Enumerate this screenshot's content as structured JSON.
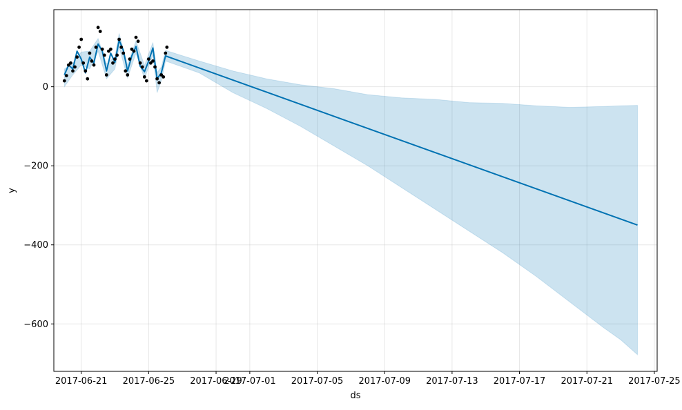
{
  "chart_data": {
    "type": "line",
    "title": "",
    "xlabel": "ds",
    "ylabel": "y",
    "xlim": [
      "2017-06-19T09:00",
      "2017-07-25T04:00"
    ],
    "ylim": [
      -720,
      195
    ],
    "x_ticks": [
      "2017-06-21",
      "2017-06-25",
      "2017-06-29",
      "2017-07-01",
      "2017-07-05",
      "2017-07-09",
      "2017-07-13",
      "2017-07-17",
      "2017-07-21",
      "2017-07-25"
    ],
    "y_ticks": [
      0,
      -200,
      -400,
      -600
    ],
    "grid": true,
    "colors": {
      "forecast": "#0072B2",
      "band": "#0072B2",
      "observed": "#000000"
    },
    "series": [
      {
        "kind": "forecast",
        "points": [
          [
            "2017-06-20T00:00",
            30
          ],
          [
            "2017-06-20T06:00",
            55
          ],
          [
            "2017-06-20T12:00",
            45
          ],
          [
            "2017-06-20T18:00",
            90
          ],
          [
            "2017-06-21T00:00",
            70
          ],
          [
            "2017-06-21T06:00",
            35
          ],
          [
            "2017-06-21T12:00",
            75
          ],
          [
            "2017-06-21T18:00",
            60
          ],
          [
            "2017-06-22T00:00",
            108
          ],
          [
            "2017-06-22T06:00",
            90
          ],
          [
            "2017-06-22T12:00",
            40
          ],
          [
            "2017-06-22T18:00",
            85
          ],
          [
            "2017-06-23T00:00",
            62
          ],
          [
            "2017-06-23T06:00",
            118
          ],
          [
            "2017-06-23T12:00",
            92
          ],
          [
            "2017-06-23T18:00",
            40
          ],
          [
            "2017-06-24T00:00",
            78
          ],
          [
            "2017-06-24T06:00",
            102
          ],
          [
            "2017-06-24T12:00",
            52
          ],
          [
            "2017-06-24T18:00",
            38
          ],
          [
            "2017-06-25T00:00",
            65
          ],
          [
            "2017-06-25T06:00",
            98
          ],
          [
            "2017-06-25T12:00",
            20
          ],
          [
            "2017-06-25T18:00",
            35
          ],
          [
            "2017-06-26T00:00",
            78
          ],
          [
            "2017-07-24T00:00",
            -350
          ]
        ]
      },
      {
        "kind": "uncertainty-upper",
        "points": [
          [
            "2017-06-20T00:00",
            45
          ],
          [
            "2017-06-20T12:00",
            60
          ],
          [
            "2017-06-21T00:00",
            88
          ],
          [
            "2017-06-21T12:00",
            90
          ],
          [
            "2017-06-22T00:00",
            122
          ],
          [
            "2017-06-22T12:00",
            58
          ],
          [
            "2017-06-23T00:00",
            76
          ],
          [
            "2017-06-23T06:00",
            135
          ],
          [
            "2017-06-23T18:00",
            56
          ],
          [
            "2017-06-24T06:00",
            116
          ],
          [
            "2017-06-24T18:00",
            54
          ],
          [
            "2017-06-25T06:00",
            112
          ],
          [
            "2017-06-25T12:00",
            36
          ],
          [
            "2017-06-25T18:00",
            50
          ],
          [
            "2017-06-26T00:00",
            92
          ],
          [
            "2017-06-28T00:00",
            65
          ],
          [
            "2017-06-30T00:00",
            40
          ],
          [
            "2017-07-02T00:00",
            20
          ],
          [
            "2017-07-04T00:00",
            5
          ],
          [
            "2017-07-06T00:00",
            -5
          ],
          [
            "2017-07-08T00:00",
            -20
          ],
          [
            "2017-07-10T00:00",
            -28
          ],
          [
            "2017-07-12T00:00",
            -32
          ],
          [
            "2017-07-14T00:00",
            -40
          ],
          [
            "2017-07-16T00:00",
            -42
          ],
          [
            "2017-07-18T00:00",
            -48
          ],
          [
            "2017-07-20T00:00",
            -52
          ],
          [
            "2017-07-22T00:00",
            -50
          ],
          [
            "2017-07-23T00:00",
            -48
          ],
          [
            "2017-07-24T00:00",
            -47
          ]
        ]
      },
      {
        "kind": "uncertainty-lower",
        "points": [
          [
            "2017-06-20T00:00",
            0
          ],
          [
            "2017-06-20T12:00",
            30
          ],
          [
            "2017-06-21T00:00",
            55
          ],
          [
            "2017-06-21T12:00",
            45
          ],
          [
            "2017-06-22T00:00",
            90
          ],
          [
            "2017-06-22T12:00",
            20
          ],
          [
            "2017-06-23T00:00",
            45
          ],
          [
            "2017-06-23T06:00",
            100
          ],
          [
            "2017-06-23T18:00",
            22
          ],
          [
            "2017-06-24T06:00",
            85
          ],
          [
            "2017-06-24T18:00",
            20
          ],
          [
            "2017-06-25T06:00",
            80
          ],
          [
            "2017-06-25T12:00",
            -15
          ],
          [
            "2017-06-25T18:00",
            15
          ],
          [
            "2017-06-26T00:00",
            65
          ],
          [
            "2017-06-28T00:00",
            35
          ],
          [
            "2017-06-30T00:00",
            -15
          ],
          [
            "2017-07-02T00:00",
            -55
          ],
          [
            "2017-07-04T00:00",
            -100
          ],
          [
            "2017-07-06T00:00",
            -150
          ],
          [
            "2017-07-08T00:00",
            -200
          ],
          [
            "2017-07-10T00:00",
            -255
          ],
          [
            "2017-07-12T00:00",
            -310
          ],
          [
            "2017-07-14T00:00",
            -365
          ],
          [
            "2017-07-16T00:00",
            -420
          ],
          [
            "2017-07-18T00:00",
            -480
          ],
          [
            "2017-07-20T00:00",
            -545
          ],
          [
            "2017-07-22T00:00",
            -610
          ],
          [
            "2017-07-23T00:00",
            -640
          ],
          [
            "2017-07-24T00:00",
            -678
          ]
        ]
      },
      {
        "kind": "observed",
        "points": [
          [
            "2017-06-20T00:00",
            15
          ],
          [
            "2017-06-20T03:00",
            28
          ],
          [
            "2017-06-20T06:00",
            55
          ],
          [
            "2017-06-20T09:00",
            60
          ],
          [
            "2017-06-20T12:00",
            40
          ],
          [
            "2017-06-20T15:00",
            50
          ],
          [
            "2017-06-20T18:00",
            75
          ],
          [
            "2017-06-20T21:00",
            100
          ],
          [
            "2017-06-21T00:00",
            120
          ],
          [
            "2017-06-21T03:00",
            60
          ],
          [
            "2017-06-21T06:00",
            40
          ],
          [
            "2017-06-21T09:00",
            20
          ],
          [
            "2017-06-21T12:00",
            85
          ],
          [
            "2017-06-21T15:00",
            65
          ],
          [
            "2017-06-21T18:00",
            55
          ],
          [
            "2017-06-21T21:00",
            100
          ],
          [
            "2017-06-22T00:00",
            150
          ],
          [
            "2017-06-22T03:00",
            140
          ],
          [
            "2017-06-22T06:00",
            95
          ],
          [
            "2017-06-22T09:00",
            80
          ],
          [
            "2017-06-22T12:00",
            30
          ],
          [
            "2017-06-22T15:00",
            90
          ],
          [
            "2017-06-22T18:00",
            95
          ],
          [
            "2017-06-22T21:00",
            60
          ],
          [
            "2017-06-23T00:00",
            70
          ],
          [
            "2017-06-23T03:00",
            80
          ],
          [
            "2017-06-23T06:00",
            120
          ],
          [
            "2017-06-23T09:00",
            100
          ],
          [
            "2017-06-23T12:00",
            85
          ],
          [
            "2017-06-23T15:00",
            40
          ],
          [
            "2017-06-23T18:00",
            30
          ],
          [
            "2017-06-23T21:00",
            70
          ],
          [
            "2017-06-24T00:00",
            95
          ],
          [
            "2017-06-24T03:00",
            90
          ],
          [
            "2017-06-24T06:00",
            125
          ],
          [
            "2017-06-24T09:00",
            115
          ],
          [
            "2017-06-24T12:00",
            60
          ],
          [
            "2017-06-24T15:00",
            50
          ],
          [
            "2017-06-24T18:00",
            25
          ],
          [
            "2017-06-24T21:00",
            15
          ],
          [
            "2017-06-25T00:00",
            70
          ],
          [
            "2017-06-25T03:00",
            60
          ],
          [
            "2017-06-25T06:00",
            65
          ],
          [
            "2017-06-25T09:00",
            50
          ],
          [
            "2017-06-25T12:00",
            20
          ],
          [
            "2017-06-25T15:00",
            10
          ],
          [
            "2017-06-25T18:00",
            30
          ],
          [
            "2017-06-25T21:00",
            25
          ],
          [
            "2017-06-26T00:00",
            85
          ],
          [
            "2017-06-26T02:00",
            100
          ]
        ]
      }
    ]
  }
}
